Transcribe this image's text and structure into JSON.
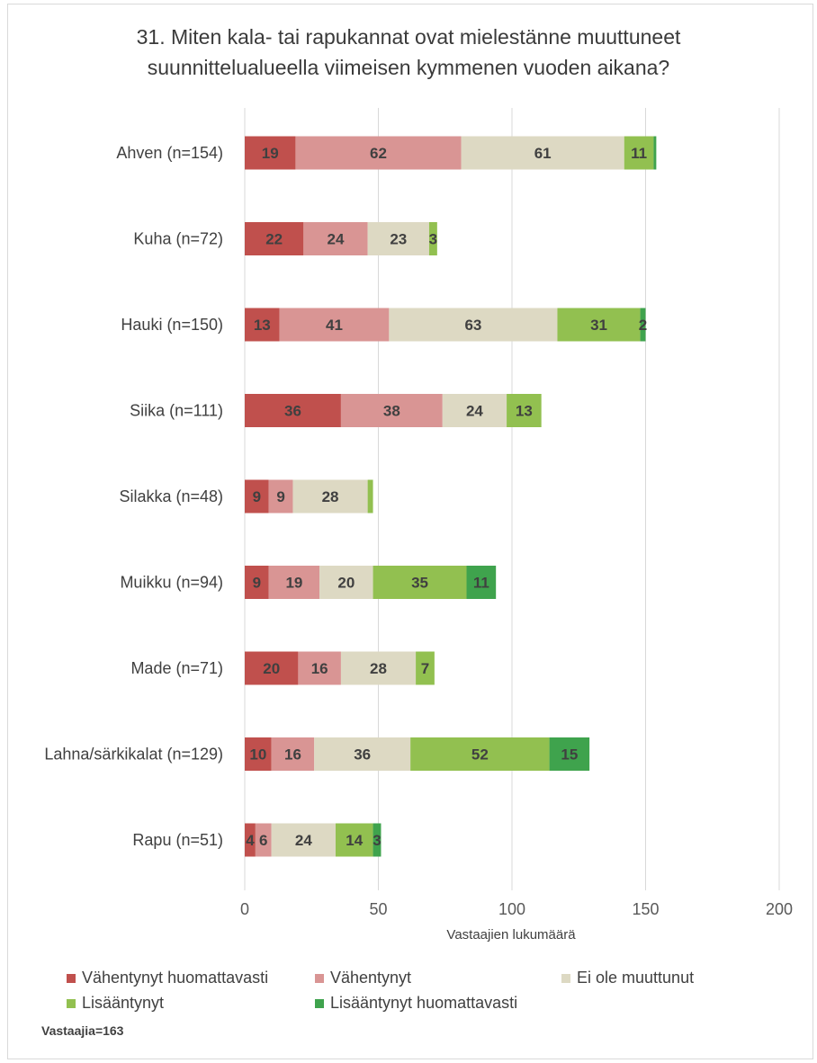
{
  "chart_data": {
    "type": "bar",
    "orientation": "horizontal",
    "stacked": true,
    "title_lines": [
      "31. Miten kala- tai rapukannat ovat mielestänne muuttuneet",
      "suunnittelualueella viimeisen kymmenen vuoden aikana?"
    ],
    "xlabel": "Vastaajien lukumäärä",
    "xlim": [
      0,
      200
    ],
    "xticks": [
      "0",
      "50",
      "100",
      "150",
      "200"
    ],
    "grid": "vertical",
    "legend_position": "bottom",
    "categories": [
      "Ahven (n=154)",
      "Kuha (n=72)",
      "Hauki (n=150)",
      "Siika (n=111)",
      "Silakka (n=48)",
      "Muikku (n=94)",
      "Made (n=71)",
      "Lahna/särkikalat (n=129)",
      "Rapu (n=51)"
    ],
    "series": [
      {
        "name": "Vähentynyt huomattavasti",
        "color": "#c0504d",
        "values": [
          19,
          22,
          13,
          36,
          9,
          9,
          20,
          10,
          4
        ],
        "labels": [
          "19",
          "22",
          "13",
          "36",
          "9",
          "9",
          "20",
          "10",
          "4"
        ]
      },
      {
        "name": "Vähentynyt",
        "color": "#d99594",
        "values": [
          62,
          24,
          41,
          38,
          9,
          19,
          16,
          16,
          6
        ],
        "labels": [
          "62",
          "24",
          "41",
          "38",
          "9",
          "19",
          "16",
          "16",
          "6"
        ]
      },
      {
        "name": "Ei ole muuttunut",
        "color": "#ddd9c3",
        "values": [
          61,
          23,
          63,
          24,
          28,
          20,
          28,
          36,
          24
        ],
        "labels": [
          "61",
          "23",
          "63",
          "24",
          "28",
          "20",
          "28",
          "36",
          "24"
        ]
      },
      {
        "name": "Lisääntynyt",
        "color": "#92c050",
        "values": [
          11,
          3,
          31,
          13,
          2,
          35,
          7,
          52,
          14
        ],
        "labels": [
          "11",
          "3",
          "31",
          "13",
          "",
          "35",
          "7",
          "52",
          "14"
        ]
      },
      {
        "name": "Lisääntynyt huomattavasti",
        "color": "#3fa34d",
        "values": [
          1,
          0,
          2,
          0,
          0,
          11,
          0,
          15,
          3
        ],
        "labels": [
          "",
          "",
          "2",
          "",
          "",
          "11",
          "",
          "15",
          "3"
        ]
      }
    ]
  },
  "footnote": "Vastaajia=163"
}
